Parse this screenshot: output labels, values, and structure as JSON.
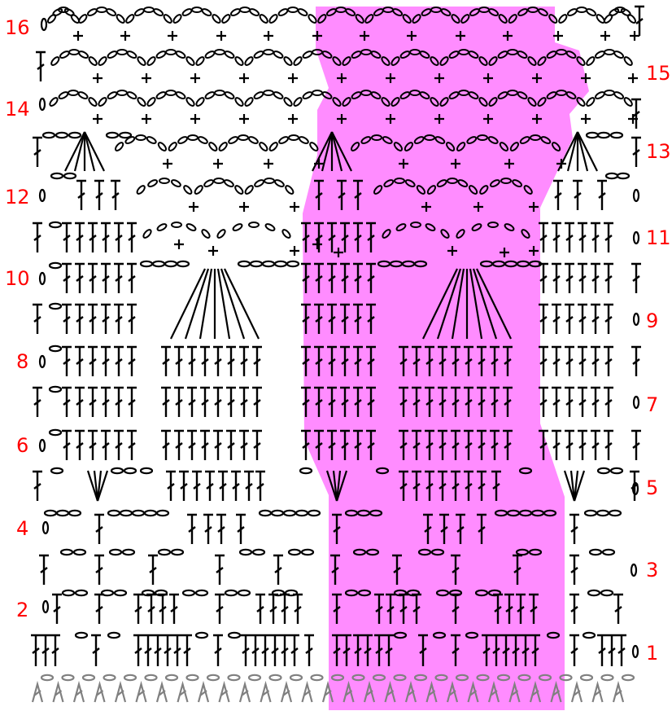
{
  "diagram": {
    "type": "crochet-stitch-chart",
    "row_numbers_left": [
      "16",
      "14",
      "12",
      "10",
      "8",
      "6",
      "4",
      "2"
    ],
    "row_numbers_right": [
      "15",
      "13",
      "11",
      "9",
      "7",
      "5",
      "3",
      "1"
    ],
    "highlight": {
      "description": "repeat section",
      "color": "#ff8cff"
    },
    "colors": {
      "ink": "#000000",
      "foundation": "#808080",
      "row_number": "#ff0000"
    },
    "stitch_symbols": [
      "chain-oval",
      "single-crochet-cross",
      "double-crochet-t",
      "turning-chain"
    ]
  }
}
